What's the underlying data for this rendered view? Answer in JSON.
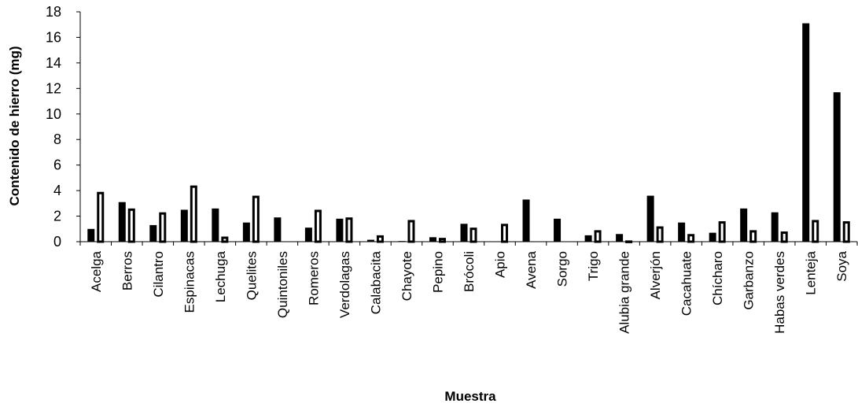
{
  "chart_data": {
    "type": "bar",
    "title": "",
    "xlabel": "Muestra",
    "ylabel": "Contenido  de hierro (mg)",
    "ylim": [
      0,
      18
    ],
    "yticks": [
      0,
      2,
      4,
      6,
      8,
      10,
      12,
      14,
      16,
      18
    ],
    "grid": false,
    "legend": "none",
    "categories": [
      "Acelga",
      "Berros",
      "Cilantro",
      "Espinacas",
      "Lechuga",
      "Quelites",
      "Quintoniles",
      "Romeros",
      "Verdolagas",
      "Calabacita",
      "Chayote",
      "Pepino",
      "Brócoli",
      "Apio",
      "Avena",
      "Sorgo",
      "Trigo",
      "Alubia grande",
      "Alverjón",
      "Cacahuate",
      "Chícharo",
      "Garbanzo",
      "Habas verdes",
      "Lenteja",
      "Soya"
    ],
    "series": [
      {
        "style": "filled",
        "color": "#000000",
        "values": [
          1.0,
          3.1,
          1.3,
          2.5,
          2.6,
          1.5,
          1.9,
          1.1,
          1.8,
          0.15,
          0.05,
          0.35,
          1.4,
          0,
          3.3,
          1.8,
          0.5,
          0.6,
          3.6,
          1.5,
          0.7,
          2.6,
          2.3,
          17.1,
          11.7
        ]
      },
      {
        "style": "hollow",
        "color": "#000000",
        "values": [
          3.9,
          2.6,
          2.3,
          4.4,
          0.4,
          3.6,
          0,
          2.5,
          1.9,
          0.5,
          1.7,
          0.3,
          1.1,
          1.4,
          0,
          0,
          0.9,
          0.1,
          1.2,
          0.6,
          1.6,
          0.9,
          0.8,
          1.7,
          1.6
        ]
      }
    ]
  }
}
